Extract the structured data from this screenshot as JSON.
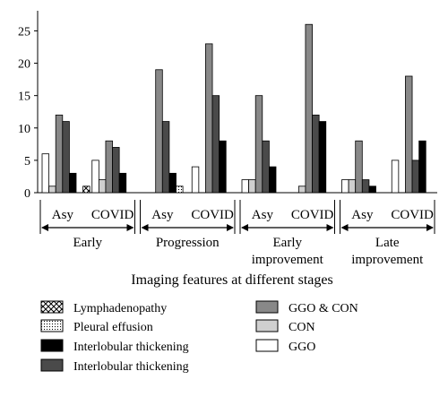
{
  "chart_data": {
    "type": "bar",
    "xlabel": "Imaging features at different stages",
    "ylabel": "",
    "ylim": [
      0,
      27
    ],
    "yticks": [
      0,
      5,
      10,
      15,
      20,
      25
    ],
    "grid": false,
    "legend_position": "bottom",
    "series": [
      {
        "name": "GGO",
        "pattern": "white",
        "color": "#ffffff"
      },
      {
        "name": "CON",
        "pattern": "light-gray",
        "color": "#cfcfcf"
      },
      {
        "name": "GGO & CON",
        "pattern": "medium-gray",
        "color": "#888888"
      },
      {
        "name": "Interlobular thickening",
        "pattern": "dark-gray",
        "color": "#4a4a4a"
      },
      {
        "name": "Interlobular thickening",
        "pattern": "black",
        "color": "#000000"
      },
      {
        "name": "Pleural effusion",
        "pattern": "dots",
        "color": "#ffffff"
      },
      {
        "name": "Lymphadenopathy",
        "pattern": "cross-hatch",
        "color": "#ffffff"
      }
    ],
    "categories": [
      "Asy",
      "COVID",
      "Asy",
      "COVID",
      "Asy",
      "COVID",
      "Asy",
      "COVID"
    ],
    "stages": [
      {
        "label": "Early",
        "label2": ""
      },
      {
        "label": "Progression",
        "label2": ""
      },
      {
        "label": "Early",
        "label2": "improvement"
      },
      {
        "label": "Late",
        "label2": "improvement"
      }
    ],
    "values": [
      [
        6,
        1,
        12,
        11,
        3,
        0,
        1
      ],
      [
        5,
        2,
        8,
        7,
        3,
        0,
        0
      ],
      [
        0,
        0,
        19,
        11,
        3,
        1,
        0
      ],
      [
        4,
        0,
        23,
        15,
        8,
        0,
        0
      ],
      [
        2,
        2,
        15,
        8,
        4,
        0,
        0
      ],
      [
        0,
        1,
        26,
        12,
        11,
        0,
        0
      ],
      [
        2,
        2,
        8,
        2,
        1,
        0,
        0
      ],
      [
        5,
        0,
        18,
        5,
        8,
        0,
        0
      ]
    ],
    "legend_left": [
      "Lymphadenopathy",
      "Pleural effusion",
      "Interlobular thickening",
      "Interlobular thickening"
    ],
    "legend_right": [
      "GGO & CON",
      "CON",
      "GGO"
    ]
  },
  "colors": {
    "axis": "#000000"
  }
}
